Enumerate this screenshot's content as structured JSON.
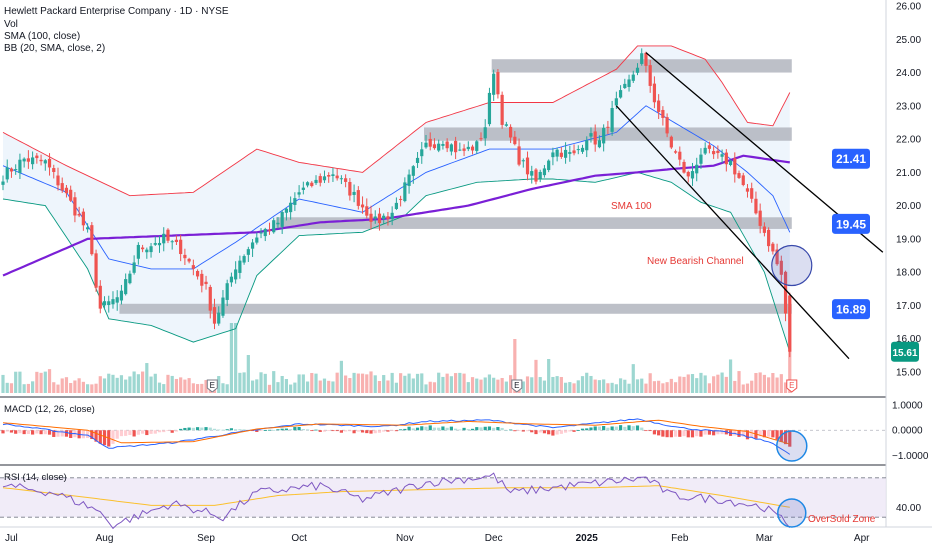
{
  "header": {
    "title": "Hewlett Packard Enterprise Company · 1D · NYSE",
    "volume_label": "Vol",
    "sma_label": "SMA (100, close)",
    "bb_label": "BB (20, SMA, close, 2)"
  },
  "macd_label": "MACD (12, 26, close)",
  "rsi_label": "RSI (14, close)",
  "annotations": {
    "sma_note": "SMA 100",
    "channel_note": "New Bearish Channel",
    "rsi_note": "OverSold Zone",
    "earnings_marker": "E"
  },
  "price_badges": [
    {
      "label": "21.41",
      "value": 21.41,
      "color": "#2962ff"
    },
    {
      "label": "19.45",
      "value": 19.45,
      "color": "#2962ff"
    },
    {
      "label": "16.89",
      "value": 16.89,
      "color": "#2962ff"
    },
    {
      "label": "15.61",
      "value": 15.61,
      "color": "#089981"
    }
  ],
  "colors": {
    "up": "#26a69a",
    "down": "#ef5350",
    "sma": "#7a1fd6",
    "bb_basis": "#2962ff",
    "bb_upper": "#f23645",
    "bb_lower": "#089981",
    "bb_fill": "#e8f1fb",
    "zone": "#b2b5be",
    "macd_line": "#2962ff",
    "signal_line": "#ff6d00",
    "rsi_line": "#7e57c2",
    "rsi_ma": "#fbc02d",
    "rsi_band": "#ede7f6",
    "channel": "#000000"
  },
  "chart_data": [
    {
      "type": "candlestick",
      "title": "Hewlett Packard Enterprise Company · 1D · NYSE",
      "x_ticks": [
        "Jul",
        "Aug",
        "Sep",
        "Oct",
        "Nov",
        "Dec",
        "2025",
        "Feb",
        "Mar",
        "Apr"
      ],
      "y_ticks": [
        "26.00",
        "25.00",
        "24.00",
        "23.00",
        "22.00",
        "21.00",
        "20.00",
        "19.00",
        "18.00",
        "17.00",
        "16.00",
        "15.00"
      ],
      "ylim": [
        14.7,
        26.1
      ],
      "grid": false,
      "waypoints_close": [
        [
          0,
          20.9
        ],
        [
          5,
          21.4
        ],
        [
          10,
          21.3
        ],
        [
          15,
          20.3
        ],
        [
          20,
          19.2
        ],
        [
          23,
          16.9
        ],
        [
          28,
          17.3
        ],
        [
          32,
          18.7
        ],
        [
          38,
          19.0
        ],
        [
          42,
          18.7
        ],
        [
          48,
          17.5
        ],
        [
          50,
          16.5
        ],
        [
          55,
          18.2
        ],
        [
          60,
          19.1
        ],
        [
          65,
          19.5
        ],
        [
          70,
          20.4
        ],
        [
          78,
          21.0
        ],
        [
          83,
          20.3
        ],
        [
          88,
          19.5
        ],
        [
          92,
          19.8
        ],
        [
          96,
          20.8
        ],
        [
          100,
          21.8
        ],
        [
          104,
          22.0
        ],
        [
          108,
          21.6
        ],
        [
          112,
          21.8
        ],
        [
          114,
          22.4
        ],
        [
          116,
          24.1
        ],
        [
          118,
          22.6
        ],
        [
          122,
          21.4
        ],
        [
          126,
          20.7
        ],
        [
          130,
          21.7
        ],
        [
          135,
          21.5
        ],
        [
          138,
          22.1
        ],
        [
          141,
          21.9
        ],
        [
          145,
          23.1
        ],
        [
          148,
          23.7
        ],
        [
          151,
          24.5
        ],
        [
          154,
          23.2
        ],
        [
          158,
          21.8
        ],
        [
          162,
          20.8
        ],
        [
          165,
          21.6
        ],
        [
          168,
          21.5
        ],
        [
          172,
          21.3
        ],
        [
          175,
          20.6
        ],
        [
          179,
          19.5
        ],
        [
          181,
          18.9
        ],
        [
          184,
          17.9
        ],
        [
          186,
          15.61
        ]
      ],
      "close_series_summary": "≈187 daily candles from Jul 2024 to early Mar 2025; last close 15.61",
      "bb_upper_waypoints": [
        [
          0,
          22.2
        ],
        [
          15,
          21.2
        ],
        [
          30,
          20.3
        ],
        [
          45,
          20.4
        ],
        [
          60,
          21.7
        ],
        [
          70,
          21.3
        ],
        [
          85,
          21.0
        ],
        [
          100,
          22.5
        ],
        [
          115,
          23.1
        ],
        [
          130,
          23.1
        ],
        [
          145,
          24.1
        ],
        [
          150,
          24.8
        ],
        [
          158,
          24.8
        ],
        [
          166,
          24.4
        ],
        [
          170,
          23.7
        ],
        [
          176,
          22.5
        ],
        [
          182,
          22.4
        ],
        [
          186,
          23.4
        ]
      ],
      "bb_basis_waypoints": [
        [
          0,
          21.2
        ],
        [
          15,
          20.4
        ],
        [
          25,
          18.4
        ],
        [
          35,
          18.1
        ],
        [
          45,
          18.1
        ],
        [
          55,
          18.9
        ],
        [
          70,
          20.2
        ],
        [
          85,
          19.8
        ],
        [
          100,
          21.0
        ],
        [
          115,
          21.7
        ],
        [
          130,
          21.7
        ],
        [
          145,
          22.2
        ],
        [
          152,
          23.0
        ],
        [
          160,
          22.4
        ],
        [
          168,
          21.8
        ],
        [
          176,
          21.0
        ],
        [
          182,
          20.3
        ],
        [
          186,
          19.2
        ]
      ],
      "bb_lower_waypoints": [
        [
          0,
          20.2
        ],
        [
          10,
          20.0
        ],
        [
          20,
          18.1
        ],
        [
          25,
          16.6
        ],
        [
          35,
          16.4
        ],
        [
          45,
          15.9
        ],
        [
          55,
          16.3
        ],
        [
          60,
          17.9
        ],
        [
          70,
          19.1
        ],
        [
          85,
          19.2
        ],
        [
          95,
          19.7
        ],
        [
          100,
          20.3
        ],
        [
          112,
          20.7
        ],
        [
          125,
          20.8
        ],
        [
          130,
          20.8
        ],
        [
          140,
          20.7
        ],
        [
          150,
          21.0
        ],
        [
          158,
          20.7
        ],
        [
          165,
          20.1
        ],
        [
          172,
          19.8
        ],
        [
          180,
          18.0
        ],
        [
          186,
          15.6
        ]
      ],
      "sma100_waypoints": [
        [
          0,
          17.9
        ],
        [
          20,
          19.0
        ],
        [
          40,
          19.1
        ],
        [
          60,
          19.2
        ],
        [
          75,
          19.5
        ],
        [
          90,
          19.6
        ],
        [
          110,
          20.0
        ],
        [
          125,
          20.5
        ],
        [
          140,
          20.9
        ],
        [
          150,
          21.0
        ],
        [
          158,
          21.1
        ],
        [
          168,
          21.2
        ],
        [
          175,
          21.5
        ],
        [
          186,
          21.3
        ]
      ],
      "horizontal_zones": [
        {
          "low": 24.0,
          "high": 24.4,
          "from": 116,
          "to": 186
        },
        {
          "low": 21.95,
          "high": 22.35,
          "from": 100,
          "to": 186
        },
        {
          "low": 19.3,
          "high": 19.65,
          "from": 65,
          "to": 186
        },
        {
          "low": 16.75,
          "high": 17.05,
          "from": 28,
          "to": 186
        }
      ],
      "bearish_channel": {
        "upper": [
          [
            152,
            24.6
          ],
          [
            208,
            18.6
          ]
        ],
        "lower": [
          [
            145,
            23.0
          ],
          [
            200,
            15.4
          ]
        ]
      },
      "volume": "per-candle volume bars with large spike on the final session"
    },
    {
      "type": "line",
      "title": "MACD (12, 26, close)",
      "y_ticks": [
        "1.0000",
        "0.0000",
        "−1.0000"
      ],
      "ylim": [
        -1.3,
        1.2
      ],
      "series": [
        {
          "name": "",
          "values_waypoints": [
            [
              0,
              0.25
            ],
            [
              20,
              -0.2
            ],
            [
              25,
              -0.7
            ],
            [
              40,
              -0.5
            ],
            [
              55,
              -0.1
            ],
            [
              70,
              0.25
            ],
            [
              90,
              0.15
            ],
            [
              100,
              0.35
            ],
            [
              115,
              0.4
            ],
            [
              130,
              0.1
            ],
            [
              150,
              0.45
            ],
            [
              160,
              0.1
            ],
            [
              172,
              -0.1
            ],
            [
              182,
              -0.5
            ],
            [
              186,
              -0.98
            ]
          ]
        },
        {
          "name": "",
          "values_waypoints": [
            [
              0,
              0.3
            ],
            [
              20,
              0.0
            ],
            [
              28,
              -0.5
            ],
            [
              45,
              -0.45
            ],
            [
              60,
              0.05
            ],
            [
              75,
              0.25
            ],
            [
              95,
              0.2
            ],
            [
              110,
              0.35
            ],
            [
              125,
              0.25
            ],
            [
              140,
              0.2
            ],
            [
              155,
              0.4
            ],
            [
              165,
              0.15
            ],
            [
              176,
              -0.05
            ],
            [
              186,
              -0.55
            ]
          ]
        }
      ]
    },
    {
      "type": "line",
      "title": "RSI (14, close)",
      "y_ticks": [
        "40.00"
      ],
      "ylim": [
        20,
        80
      ],
      "bands": [
        30,
        70
      ],
      "series": [
        {
          "name": "",
          "values_waypoints": [
            [
              0,
              62
            ],
            [
              12,
              55
            ],
            [
              22,
              38
            ],
            [
              26,
              22
            ],
            [
              40,
              44
            ],
            [
              48,
              35
            ],
            [
              52,
              30
            ],
            [
              60,
              55
            ],
            [
              75,
              62
            ],
            [
              85,
              48
            ],
            [
              100,
              65
            ],
            [
              116,
              72
            ],
            [
              120,
              55
            ],
            [
              130,
              60
            ],
            [
              152,
              70
            ],
            [
              158,
              52
            ],
            [
              170,
              48
            ],
            [
              180,
              40
            ],
            [
              186,
              22
            ]
          ]
        },
        {
          "name": "",
          "values_waypoints": [
            [
              0,
              60
            ],
            [
              20,
              50
            ],
            [
              35,
              42
            ],
            [
              50,
              42
            ],
            [
              65,
              52
            ],
            [
              80,
              56
            ],
            [
              100,
              58
            ],
            [
              120,
              60
            ],
            [
              140,
              60
            ],
            [
              155,
              62
            ],
            [
              170,
              52
            ],
            [
              186,
              40
            ]
          ]
        }
      ]
    }
  ]
}
